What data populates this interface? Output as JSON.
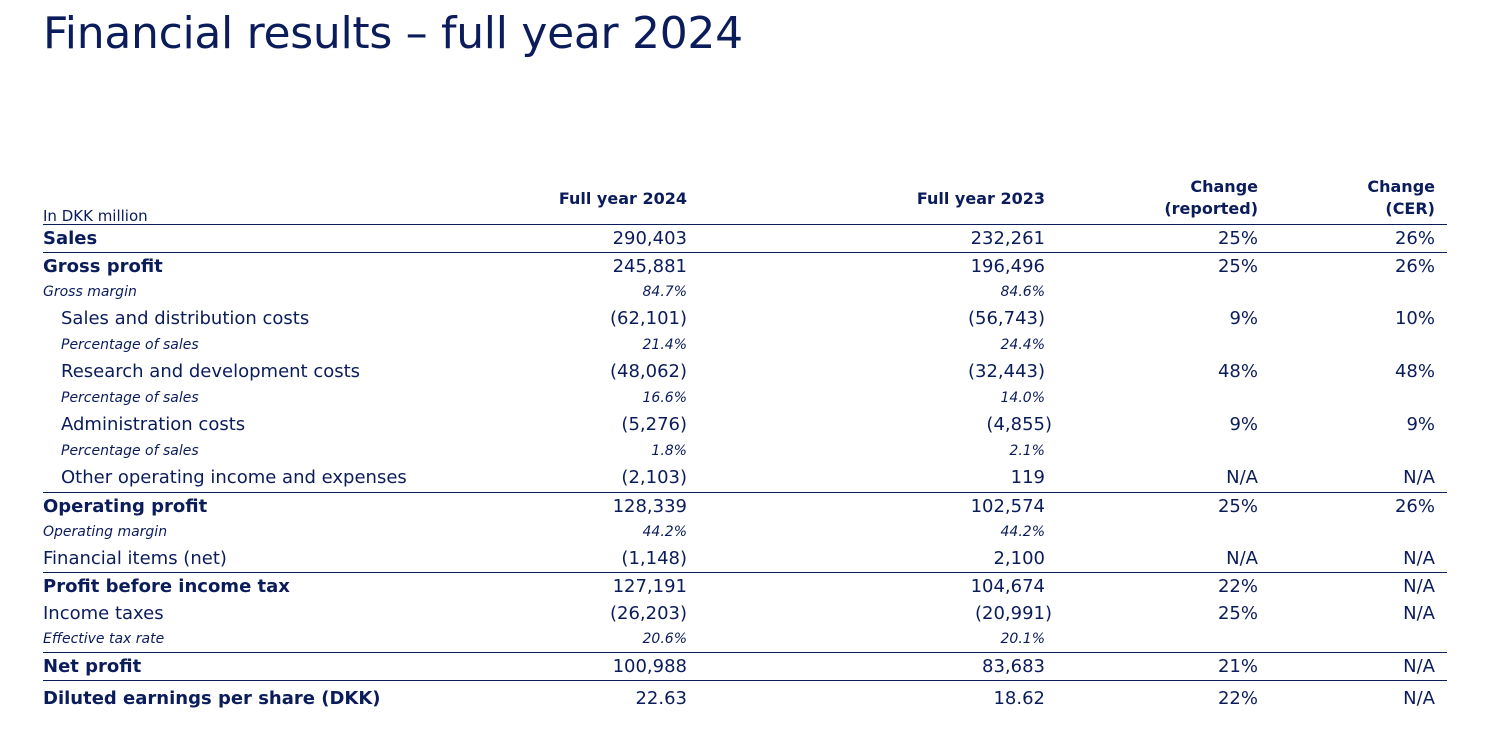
{
  "title": "Financial results – full year 2024",
  "table": {
    "unit_label": "In DKK million",
    "columns": {
      "c1": "Full year 2024",
      "c2": "Full year 2023",
      "c3_line1": "Change",
      "c3_line2": "(reported)",
      "c4_line1": "Change",
      "c4_line2": "(CER)"
    },
    "rows": [
      {
        "label": "Sales",
        "c1": "290,403",
        "c2": "232,261",
        "c3": "25%",
        "c4": "26%"
      },
      {
        "label": "Gross profit",
        "c1": "245,881",
        "c2": "196,496",
        "c3": "25%",
        "c4": "26%"
      },
      {
        "label": "Gross margin",
        "c1": "84.7%",
        "c2": "84.6%"
      },
      {
        "label": "Sales and distribution costs",
        "c1": "(62,101)",
        "c2": "(56,743)",
        "c3": "9%",
        "c4": "10%"
      },
      {
        "label": "Percentage of sales",
        "c1": "21.4%",
        "c2": "24.4%"
      },
      {
        "label": "Research and development costs",
        "c1": "(48,062)",
        "c2": "(32,443)",
        "c3": "48%",
        "c4": "48%"
      },
      {
        "label": "Percentage of sales",
        "c1": "16.6%",
        "c2": "14.0%"
      },
      {
        "label": "Administration costs",
        "c1": "(5,276)",
        "c2": "(4,855)",
        "c3": "9%",
        "c4": "9%"
      },
      {
        "label": "Percentage of sales",
        "c1": "1.8%",
        "c2": "2.1%"
      },
      {
        "label": "Other operating income and expenses",
        "c1": "(2,103)",
        "c2": "119",
        "c3": "N/A",
        "c4": "N/A"
      },
      {
        "label": "Operating profit",
        "c1": "128,339",
        "c2": "102,574",
        "c3": "25%",
        "c4": "26%"
      },
      {
        "label": "Operating margin",
        "c1": "44.2%",
        "c2": "44.2%"
      },
      {
        "label": "Financial items (net)",
        "c1": "(1,148)",
        "c2": "2,100",
        "c3": "N/A",
        "c4": "N/A"
      },
      {
        "label": "Profit before income tax",
        "c1": "127,191",
        "c2": "104,674",
        "c3": "22%",
        "c4": "N/A"
      },
      {
        "label": "Income taxes",
        "c1": "(26,203)",
        "c2": "(20,991)",
        "c3": "25%",
        "c4": "N/A"
      },
      {
        "label": "Effective tax rate",
        "c1": "20.6%",
        "c2": "20.1%"
      },
      {
        "label": "Net profit",
        "c1": "100,988",
        "c2": "83,683",
        "c3": "21%",
        "c4": "N/A"
      },
      {
        "label": "Diluted earnings per share (DKK)",
        "c1": "22.63",
        "c2": "18.62",
        "c3": "22%",
        "c4": "N/A"
      }
    ]
  }
}
